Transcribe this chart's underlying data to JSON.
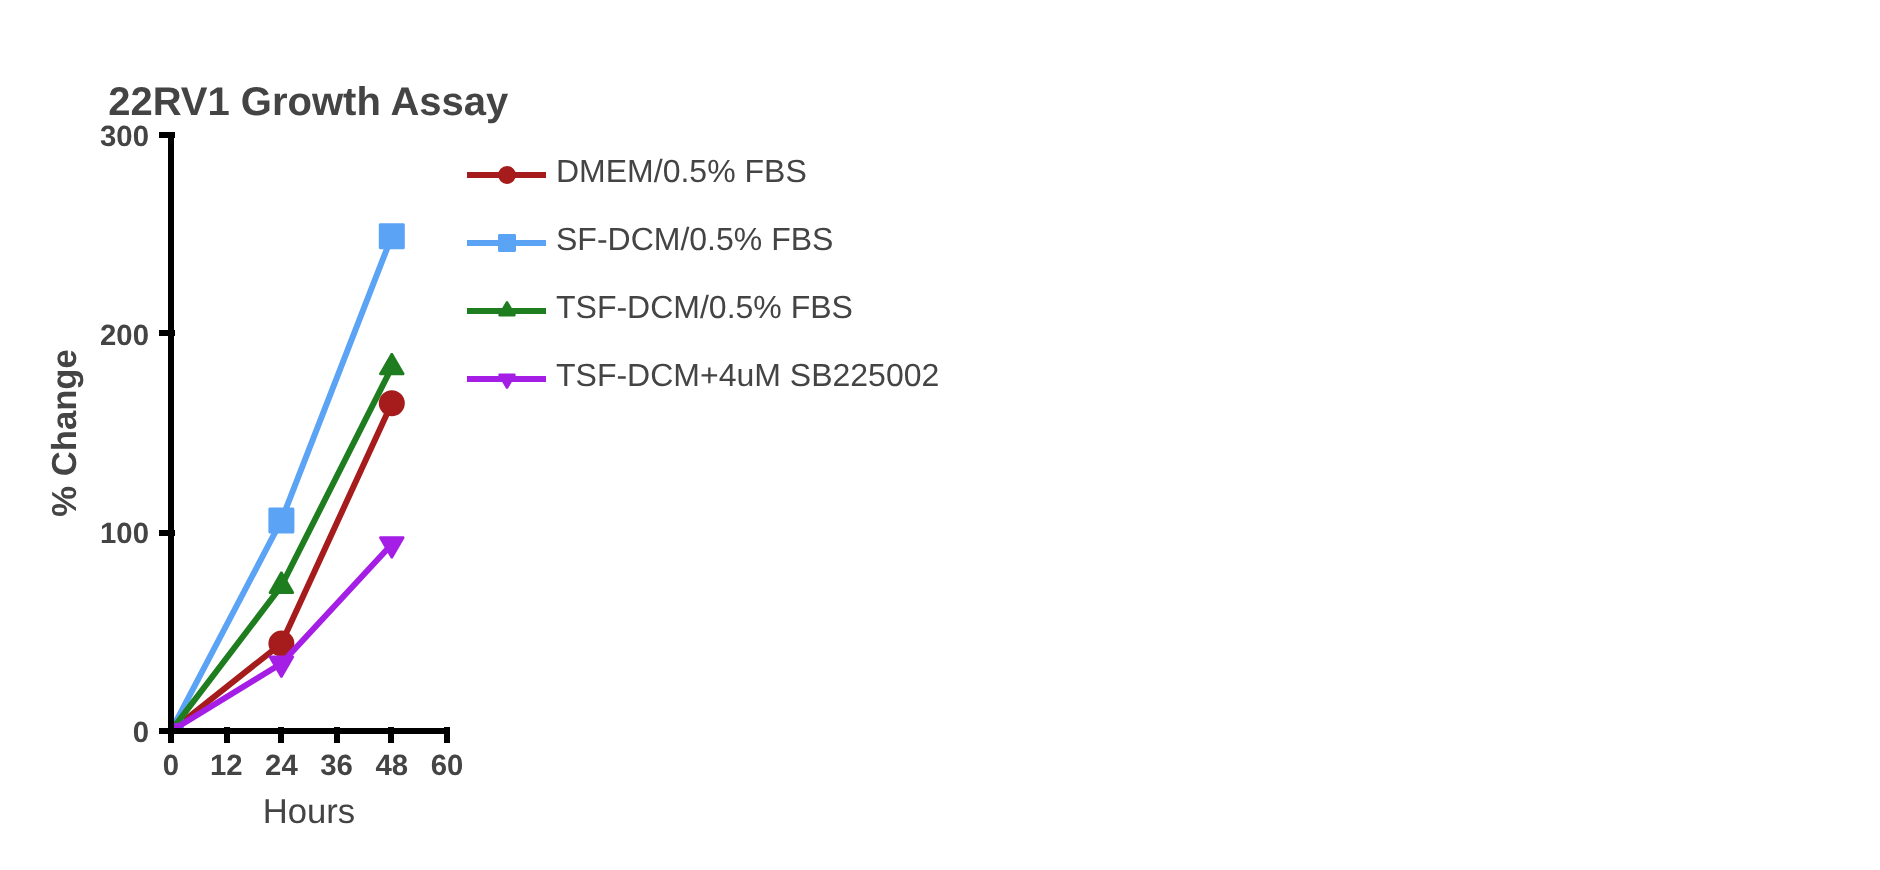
{
  "chart_data": {
    "type": "line",
    "title": "22RV1 Growth Assay",
    "xlabel": "Hours",
    "ylabel": "% Change",
    "x": [
      0,
      24,
      48
    ],
    "series": [
      {
        "name": "DMEM/0.5% FBS",
        "color": "#a61c1c",
        "marker": "circle",
        "values": [
          0,
          44,
          165
        ]
      },
      {
        "name": "SF-DCM/0.5% FBS",
        "color": "#5ba3f5",
        "marker": "square",
        "values": [
          0,
          106,
          249
        ]
      },
      {
        "name": "TSF-DCM/0.5% FBS",
        "color": "#1e7d1e",
        "marker": "triangle",
        "values": [
          0,
          73,
          183
        ]
      },
      {
        "name": "TSF-DCM+4uM SB225002",
        "color": "#a41ee6",
        "marker": "triangle_down",
        "values": [
          0,
          34,
          94
        ]
      }
    ],
    "xlim": [
      0,
      60
    ],
    "xticks": [
      0,
      12,
      24,
      36,
      48,
      60
    ],
    "ylim": [
      0,
      300
    ],
    "yticks": [
      0,
      100,
      200,
      300
    ],
    "grid": false,
    "legend": "right",
    "line_style": "solid"
  }
}
